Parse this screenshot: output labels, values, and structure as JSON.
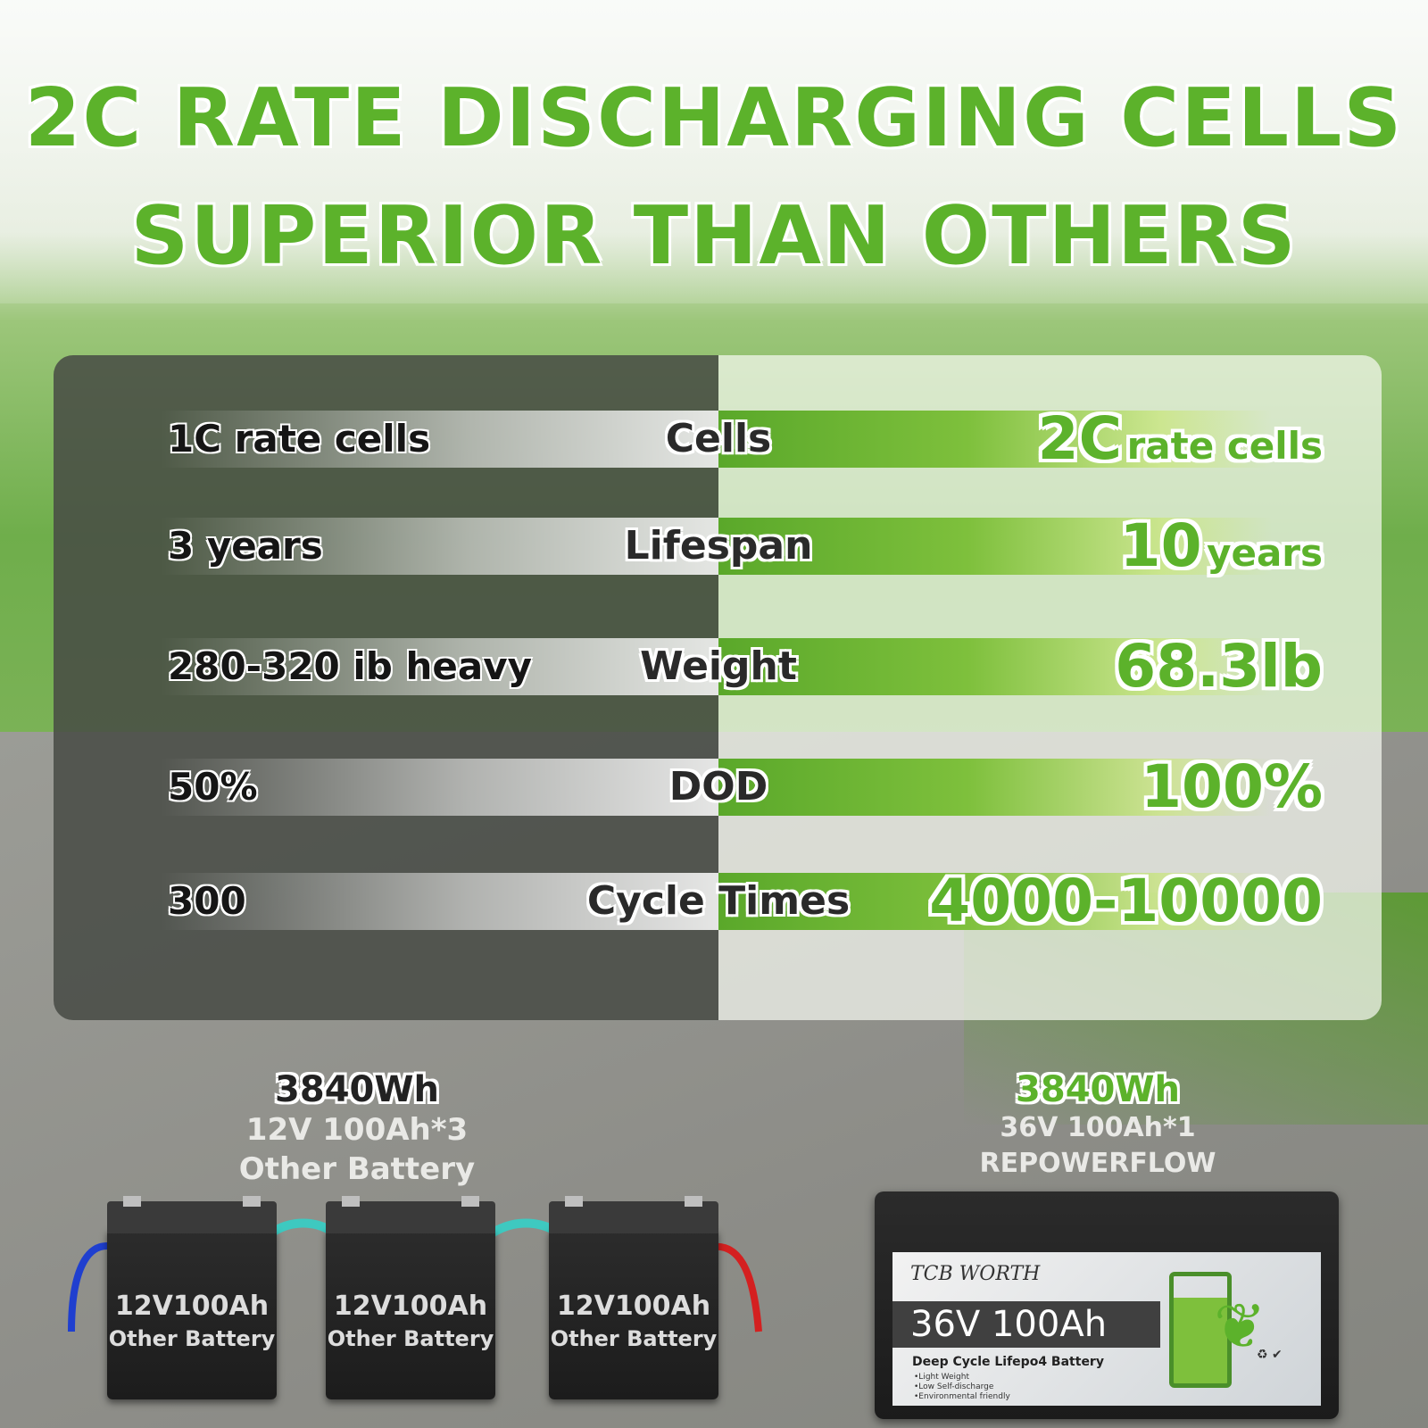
{
  "title": {
    "line1": "2C RATE DISCHARGING CELLS",
    "line2": "SUPERIOR THAN OTHERS"
  },
  "comparison": [
    {
      "left": "1C rate cells",
      "label": "Cells",
      "right_big": "2C",
      "right_small": "rate cells"
    },
    {
      "left": "3 years",
      "label": "Lifespan",
      "right_big": "10",
      "right_small": "years"
    },
    {
      "left": "280-320 ib heavy",
      "label": "Weight",
      "right_big": "68.3lb",
      "right_small": ""
    },
    {
      "left": "50%",
      "label": "DOD",
      "right_big": "100%",
      "right_small": ""
    },
    {
      "left": "300",
      "label": "Cycle Times",
      "right_big": "4000-10000",
      "right_small": ""
    }
  ],
  "other": {
    "wh": "3840Wh",
    "spec": "12V 100Ah*3",
    "name": "Other Battery",
    "unit_l1": "12V100Ah",
    "unit_l2": "Other Battery"
  },
  "ours": {
    "wh": "3840Wh",
    "spec": "36V 100Ah*1",
    "name": "REPOWERFLOW",
    "brand": "TCB WORTH",
    "model": "36V 100Ah",
    "sub": "Deep Cycle Lifepo4 Battery",
    "features": [
      "•Light Weight",
      "•Low Self-discharge",
      "•Environmental friendly"
    ]
  },
  "colors": {
    "accent_green": "#5cb22b",
    "panel_dark": "#464a44",
    "wire_blue": "#1f3fcf",
    "wire_teal": "#3ec9c0",
    "wire_red": "#d42020"
  }
}
